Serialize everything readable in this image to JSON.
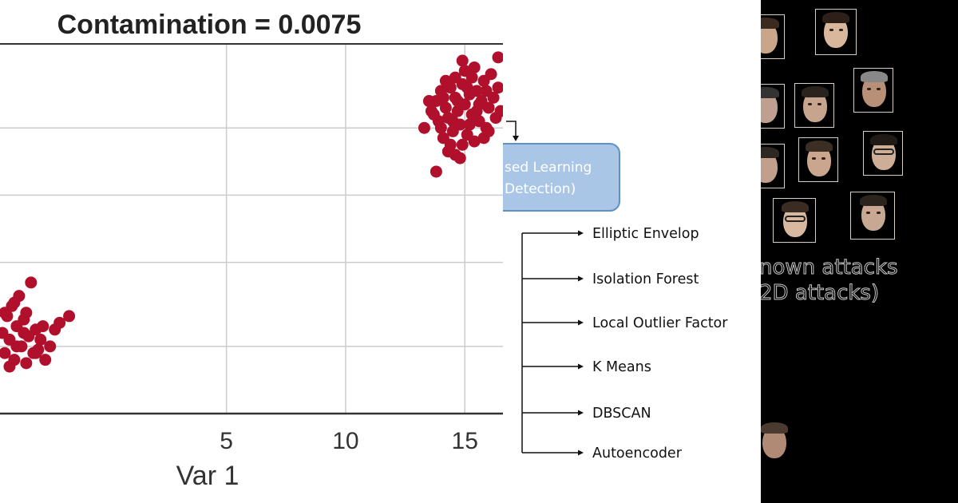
{
  "chart_data": {
    "type": "scatter",
    "title": "Contamination = 0.0075",
    "xlabel": "Var 1",
    "ylabel": "",
    "xlim": [
      -4.5,
      16.6
    ],
    "ylim": [
      0,
      11
    ],
    "x_ticks": [
      5,
      10,
      15
    ],
    "x_tick_labels": [
      "5",
      "10",
      "15"
    ],
    "y_gridlines": [
      2,
      4.5,
      6.5,
      8.5
    ],
    "grid": true,
    "legend": "none",
    "marker_color": "#b0102b",
    "series": [
      {
        "points": [
          [
            13.3,
            8.5
          ],
          [
            13.6,
            9.0
          ],
          [
            13.8,
            9.3
          ],
          [
            13.9,
            8.7
          ],
          [
            14.0,
            9.6
          ],
          [
            14.1,
            8.2
          ],
          [
            14.2,
            9.1
          ],
          [
            14.3,
            8.8
          ],
          [
            14.4,
            9.7
          ],
          [
            14.5,
            8.4
          ],
          [
            14.6,
            9.4
          ],
          [
            14.7,
            9.0
          ],
          [
            14.8,
            8.6
          ],
          [
            14.9,
            9.8
          ],
          [
            15.0,
            9.2
          ],
          [
            15.1,
            8.3
          ],
          [
            15.2,
            9.5
          ],
          [
            15.3,
            8.9
          ],
          [
            15.4,
            10.3
          ],
          [
            15.5,
            9.6
          ],
          [
            15.6,
            8.7
          ],
          [
            15.7,
            9.3
          ],
          [
            15.8,
            9.9
          ],
          [
            15.9,
            8.5
          ],
          [
            16.0,
            9.1
          ],
          [
            16.1,
            10.1
          ],
          [
            16.2,
            9.4
          ],
          [
            16.3,
            8.8
          ],
          [
            16.4,
            9.7
          ],
          [
            16.5,
            9.0
          ],
          [
            14.2,
            9.9
          ],
          [
            14.6,
            10.0
          ],
          [
            15.0,
            10.2
          ],
          [
            15.4,
            8.1
          ],
          [
            15.8,
            8.2
          ],
          [
            14.9,
            8.0
          ],
          [
            14.4,
            8.0
          ],
          [
            14.8,
            7.6
          ],
          [
            14.3,
            7.8
          ],
          [
            14.6,
            7.7
          ],
          [
            13.8,
            7.2
          ],
          [
            13.5,
            9.3
          ],
          [
            14.0,
            8.5
          ],
          [
            15.2,
            8.6
          ],
          [
            15.6,
            9.2
          ],
          [
            16.4,
            10.6
          ],
          [
            15.5,
            9.0
          ],
          [
            14.7,
            9.3
          ],
          [
            15.1,
            9.7
          ],
          [
            14.1,
            9.4
          ],
          [
            16.0,
            8.4
          ],
          [
            15.3,
            10.0
          ],
          [
            14.5,
            8.7
          ],
          [
            15.9,
            9.6
          ],
          [
            13.7,
            8.9
          ],
          [
            14.9,
            10.5
          ]
        ]
      },
      {
        "points": [
          [
            -4.4,
            2.4
          ],
          [
            -4.3,
            1.8
          ],
          [
            -4.2,
            2.9
          ],
          [
            -4.1,
            2.2
          ],
          [
            -4.0,
            3.2
          ],
          [
            -3.9,
            1.6
          ],
          [
            -3.8,
            2.6
          ],
          [
            -3.7,
            3.5
          ],
          [
            -3.6,
            2.0
          ],
          [
            -3.5,
            2.8
          ],
          [
            -3.4,
            1.5
          ],
          [
            -3.3,
            2.3
          ],
          [
            -3.2,
            3.9
          ],
          [
            -3.1,
            1.8
          ],
          [
            -3.0,
            2.5
          ],
          [
            -2.9,
            1.9
          ],
          [
            -2.8,
            2.2
          ],
          [
            -2.7,
            2.6
          ],
          [
            -2.6,
            1.6
          ],
          [
            -2.4,
            2.0
          ],
          [
            -2.2,
            2.5
          ],
          [
            -2.0,
            2.7
          ],
          [
            -1.6,
            2.9
          ],
          [
            -4.3,
            3.0
          ],
          [
            -3.9,
            3.3
          ],
          [
            -3.5,
            2.4
          ],
          [
            -3.0,
            1.8
          ],
          [
            -4.1,
            1.4
          ],
          [
            -3.8,
            2.0
          ],
          [
            -3.4,
            3.0
          ]
        ]
      }
    ]
  },
  "diagram": {
    "node_line1": "sed Learning",
    "node_line2": "Detection)",
    "branches": [
      "Elliptic Envelop",
      "Isolation Forest",
      "Local Outlier Factor",
      "K Means",
      "DBSCAN",
      "Autoencoder"
    ]
  },
  "faces": {
    "text_line1": "nown attacks",
    "text_line2": "2D attacks)"
  }
}
